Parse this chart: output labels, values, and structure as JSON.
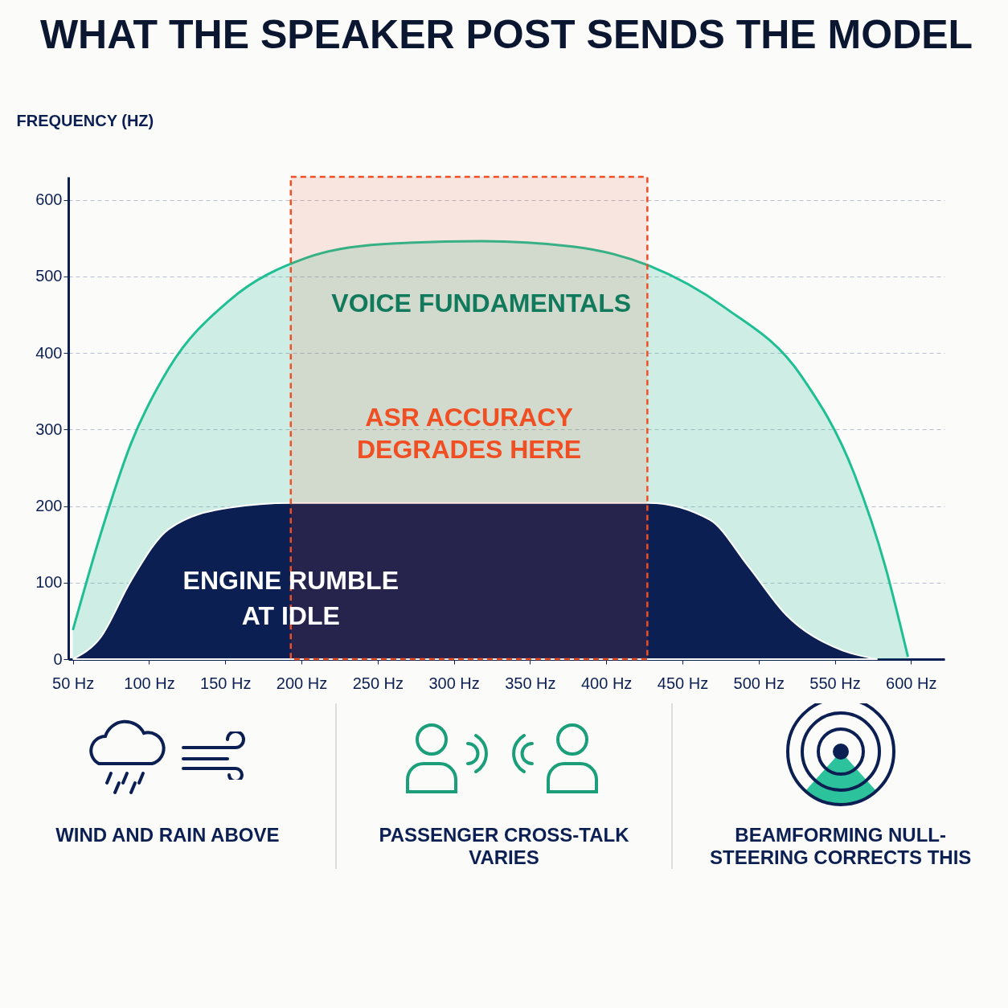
{
  "chart_data": {
    "type": "area",
    "title": "WHAT THE SPEAKER POST SENDS THE MODEL",
    "ylabel": "FREQUENCY (HZ)",
    "xlim": [
      47,
      622
    ],
    "ylim": [
      0,
      630
    ],
    "xticks": [
      {
        "value": 50,
        "label": "50 Hz"
      },
      {
        "value": 100,
        "label": "100 Hz"
      },
      {
        "value": 150,
        "label": "150 Hz"
      },
      {
        "value": 200,
        "label": "200 Hz"
      },
      {
        "value": 250,
        "label": "250 Hz"
      },
      {
        "value": 300,
        "label": "300 Hz"
      },
      {
        "value": 350,
        "label": "350 Hz"
      },
      {
        "value": 400,
        "label": "400 Hz"
      },
      {
        "value": 450,
        "label": "450 Hz"
      },
      {
        "value": 500,
        "label": "500 Hz"
      },
      {
        "value": 550,
        "label": "550 Hz"
      },
      {
        "value": 600,
        "label": "600 Hz"
      }
    ],
    "yticks": [
      0,
      100,
      200,
      300,
      400,
      500,
      600
    ],
    "grid": "y",
    "series": [
      {
        "name": "VOICE FUNDAMENTALS",
        "color": "#1fbf93",
        "x": [
          50,
          68,
          88,
          113,
          153,
          203,
          253,
          318,
          378,
          428,
          478,
          528,
          563,
          583,
          598
        ],
        "values": [
          38,
          162,
          281,
          380,
          469,
          524,
          542,
          546,
          539,
          514,
          459,
          370,
          241,
          122,
          3
        ]
      },
      {
        "name": "ENGINE RUMBLE AT IDLE",
        "color": "#0b1f52",
        "x": [
          50,
          68,
          88,
          113,
          153,
          193,
          428,
          468,
          493,
          518,
          553,
          578
        ],
        "values": [
          0,
          28,
          102,
          170,
          198,
          204,
          204,
          182,
          122,
          58,
          13,
          0
        ]
      }
    ],
    "bands": [
      {
        "axis": "x",
        "from": 193,
        "to": 427,
        "label": "ASR ACCURACY DEGRADES HERE",
        "color": "#f04e23"
      }
    ],
    "annotations": [
      "WIND AND RAIN ABOVE",
      "PASSENGER CROSS-TALK VARIES",
      "BEAMFORMING NULL-STEERING CORRECTS THIS"
    ]
  }
}
